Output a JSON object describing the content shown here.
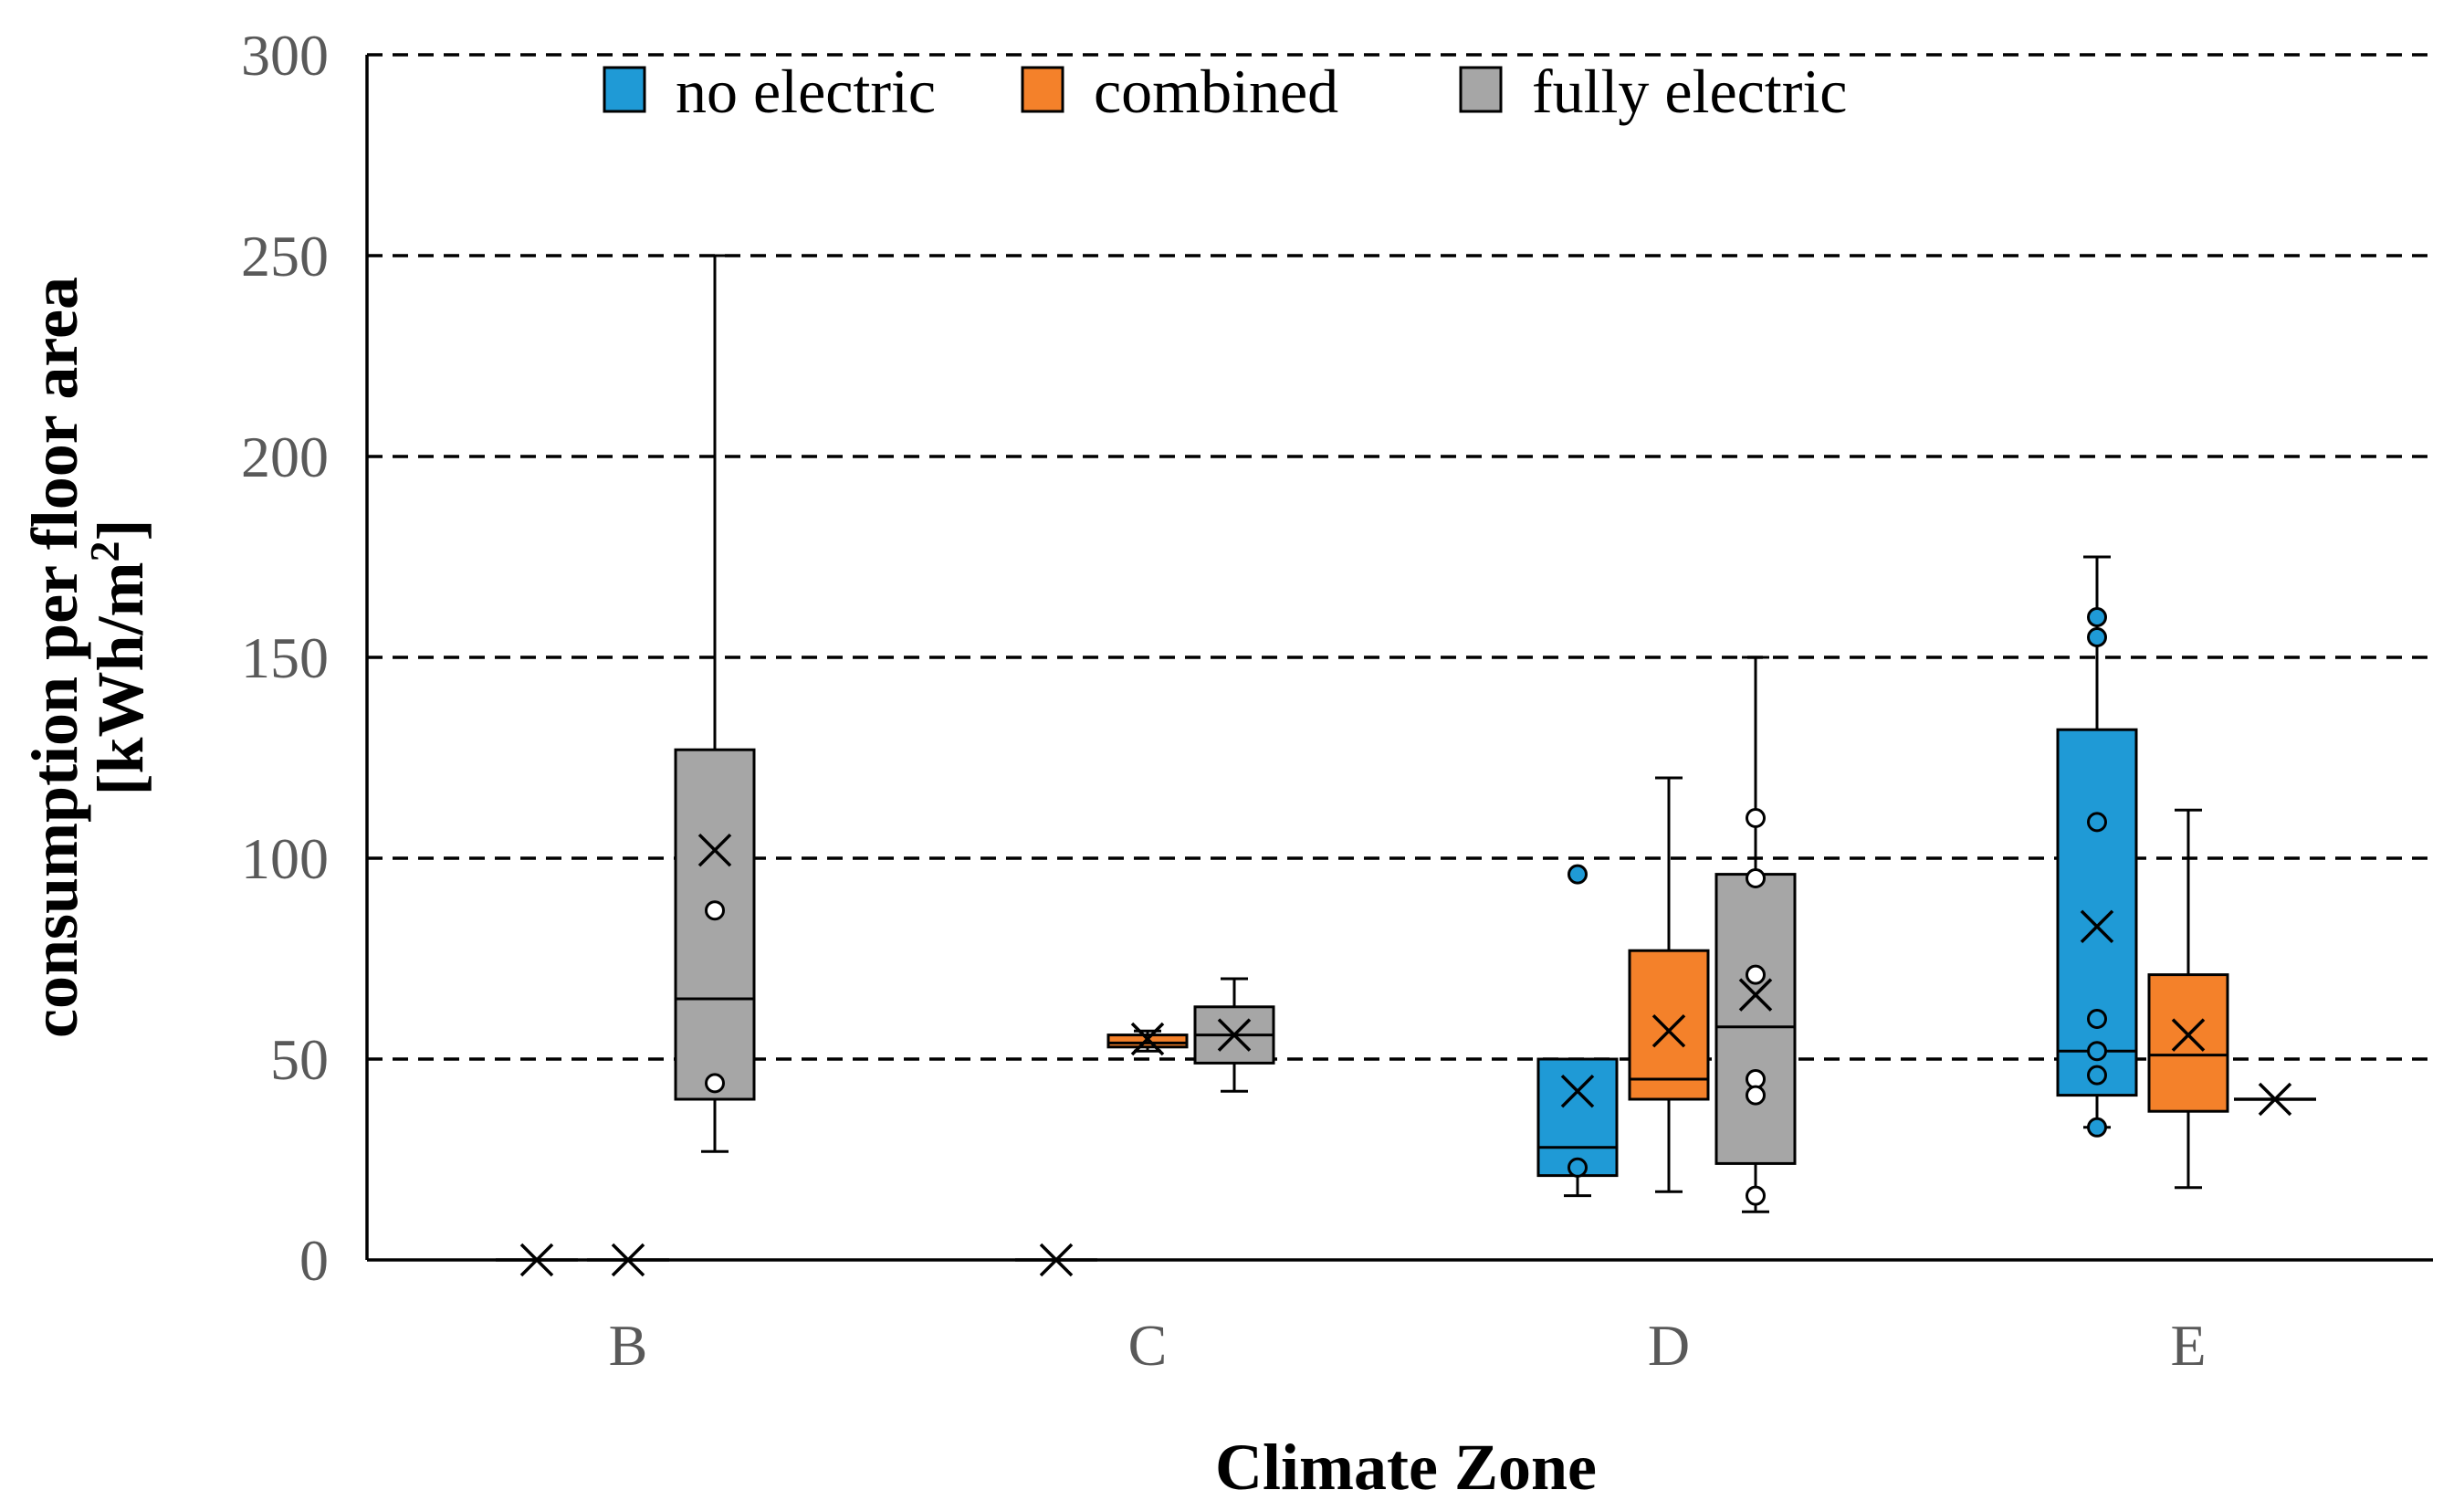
{
  "chart_data": {
    "type": "box",
    "title": "",
    "xlabel": "Climate Zone",
    "ylabel_line1": "consumption per floor area",
    "ylabel_line2_prefix": "[kWh/m",
    "ylabel_line2_sup": "2",
    "ylabel_line2_suffix": "]",
    "ylim": [
      0,
      300
    ],
    "yticks": [
      0,
      50,
      100,
      150,
      200,
      250,
      300
    ],
    "ytick_labels": [
      "0",
      "50",
      "100",
      "150",
      "200",
      "250",
      "300"
    ],
    "grid": true,
    "legend_position": "top",
    "categories": [
      "B",
      "C",
      "D",
      "E"
    ],
    "series": [
      {
        "name": "no electric",
        "color": "#1f9ad6",
        "boxes": [
          {
            "category": "B",
            "min": null,
            "q1": null,
            "median": null,
            "q3": null,
            "max": null,
            "mean": 0,
            "outliers": []
          },
          {
            "category": "C",
            "min": null,
            "q1": null,
            "median": null,
            "q3": null,
            "max": null,
            "mean": 0,
            "outliers": []
          },
          {
            "category": "D",
            "min": 16,
            "q1": 21,
            "median": 28,
            "q3": 50,
            "max": 50,
            "mean": 42,
            "outliers": [
              96,
              23
            ]
          },
          {
            "category": "E",
            "min": 33,
            "q1": 41,
            "median": 52,
            "q3": 132,
            "max": 175,
            "mean": 83,
            "outliers": [
              160,
              155,
              109,
              60,
              52,
              46,
              33
            ]
          }
        ]
      },
      {
        "name": "combined",
        "color": "#f4812a",
        "boxes": [
          {
            "category": "B",
            "min": null,
            "q1": null,
            "median": null,
            "q3": null,
            "max": null,
            "mean": 0,
            "outliers": []
          },
          {
            "category": "C",
            "min": 52,
            "q1": 53,
            "median": 54,
            "q3": 56,
            "max": 57,
            "mean": 55,
            "outliers": []
          },
          {
            "category": "D",
            "min": 17,
            "q1": 40,
            "median": 45,
            "q3": 77,
            "max": 120,
            "mean": 57,
            "outliers": []
          },
          {
            "category": "E",
            "min": 18,
            "q1": 37,
            "median": 51,
            "q3": 71,
            "max": 112,
            "mean": 56,
            "outliers": []
          }
        ]
      },
      {
        "name": "fully electric",
        "color": "#a6a6a6",
        "boxes": [
          {
            "category": "B",
            "min": 27,
            "q1": 40,
            "median": 65,
            "q3": 127,
            "max": 250,
            "mean": 102,
            "outliers": [
              87,
              44
            ]
          },
          {
            "category": "C",
            "min": 42,
            "q1": 49,
            "median": 56,
            "q3": 63,
            "max": 70,
            "mean": 56,
            "outliers": []
          },
          {
            "category": "D",
            "min": 12,
            "q1": 24,
            "median": 58,
            "q3": 96,
            "max": 150,
            "mean": 66,
            "outliers": [
              110,
              95,
              71,
              45,
              41,
              16
            ]
          },
          {
            "category": "E",
            "min": null,
            "q1": null,
            "median": null,
            "q3": null,
            "max": null,
            "mean": 40,
            "outliers": []
          }
        ]
      }
    ]
  }
}
